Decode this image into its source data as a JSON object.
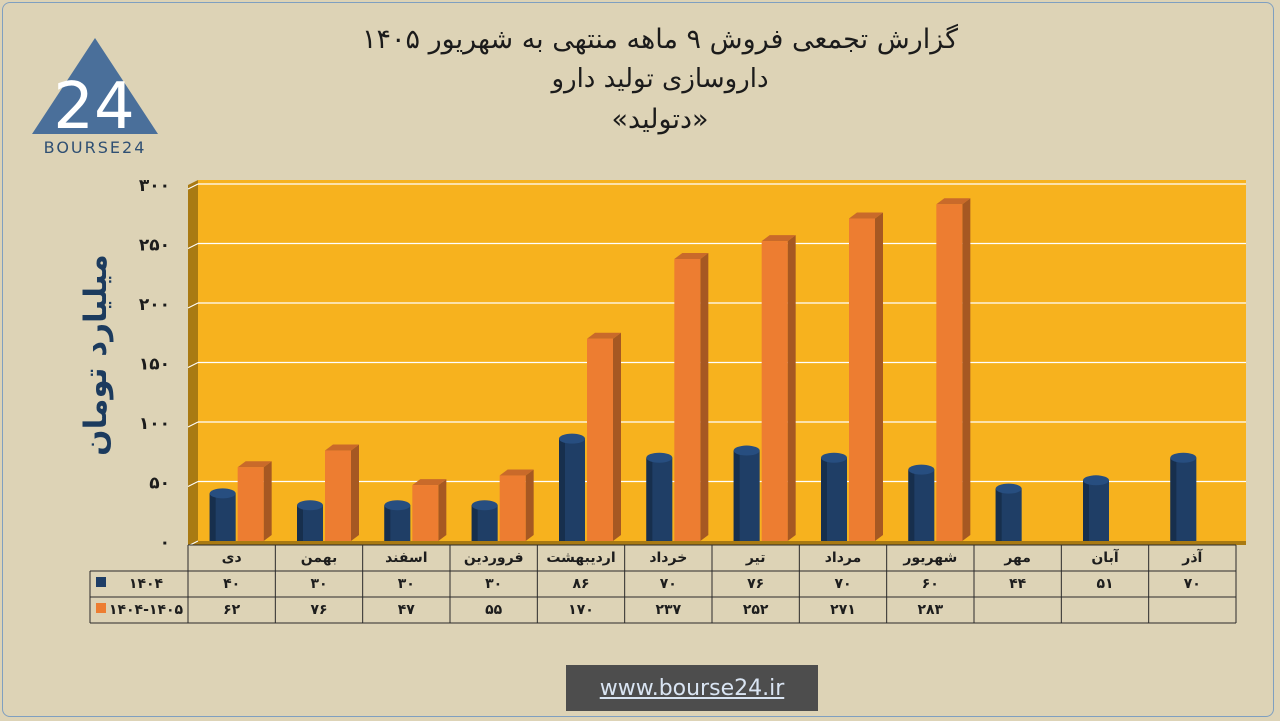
{
  "title_line1": "گزارش تجمعی فروش ۹ ماهه منتهی به شهریور ۱۴۰۵",
  "title_line2": "داروسازی تولید دارو",
  "title_line3": "«دتولید»",
  "logo_text": "BOURSE24",
  "logo_number": "24",
  "website": "www.bourse24.ir",
  "colors": {
    "series_1404": "#1f3e66",
    "series_1405": "#ed7d31",
    "plot_bg": "#f7b21e",
    "plot_side": "#a97a12"
  },
  "chart_data": {
    "type": "bar",
    "ylabel": "میلیارد تومان",
    "ylim": [
      0,
      300
    ],
    "yticks": [
      0,
      50,
      100,
      150,
      200,
      250,
      300
    ],
    "ytick_labels": [
      "۰",
      "۵۰",
      "۱۰۰",
      "۱۵۰",
      "۲۰۰",
      "۲۵۰",
      "۳۰۰"
    ],
    "categories": [
      "دی",
      "بهمن",
      "اسفند",
      "فروردین",
      "اردیبهشت",
      "خرداد",
      "تیر",
      "مرداد",
      "شهریور",
      "مهر",
      "آبان",
      "آذر"
    ],
    "series": [
      {
        "name": "۱۴۰۴",
        "values": [
          40,
          30,
          30,
          30,
          86,
          70,
          76,
          70,
          60,
          44,
          51,
          70
        ],
        "labels": [
          "۴۰",
          "۳۰",
          "۳۰",
          "۳۰",
          "۸۶",
          "۷۰",
          "۷۶",
          "۷۰",
          "۶۰",
          "۴۴",
          "۵۱",
          "۷۰"
        ]
      },
      {
        "name": "۱۴۰۴-۱۴۰۵",
        "values": [
          62,
          76,
          47,
          55,
          170,
          237,
          252,
          271,
          283,
          null,
          null,
          null
        ],
        "labels": [
          "۶۲",
          "۷۶",
          "۴۷",
          "۵۵",
          "۱۷۰",
          "۲۳۷",
          "۲۵۲",
          "۲۷۱",
          "۲۸۳",
          "",
          "",
          ""
        ]
      }
    ],
    "grid": true,
    "legend": "data-table"
  }
}
